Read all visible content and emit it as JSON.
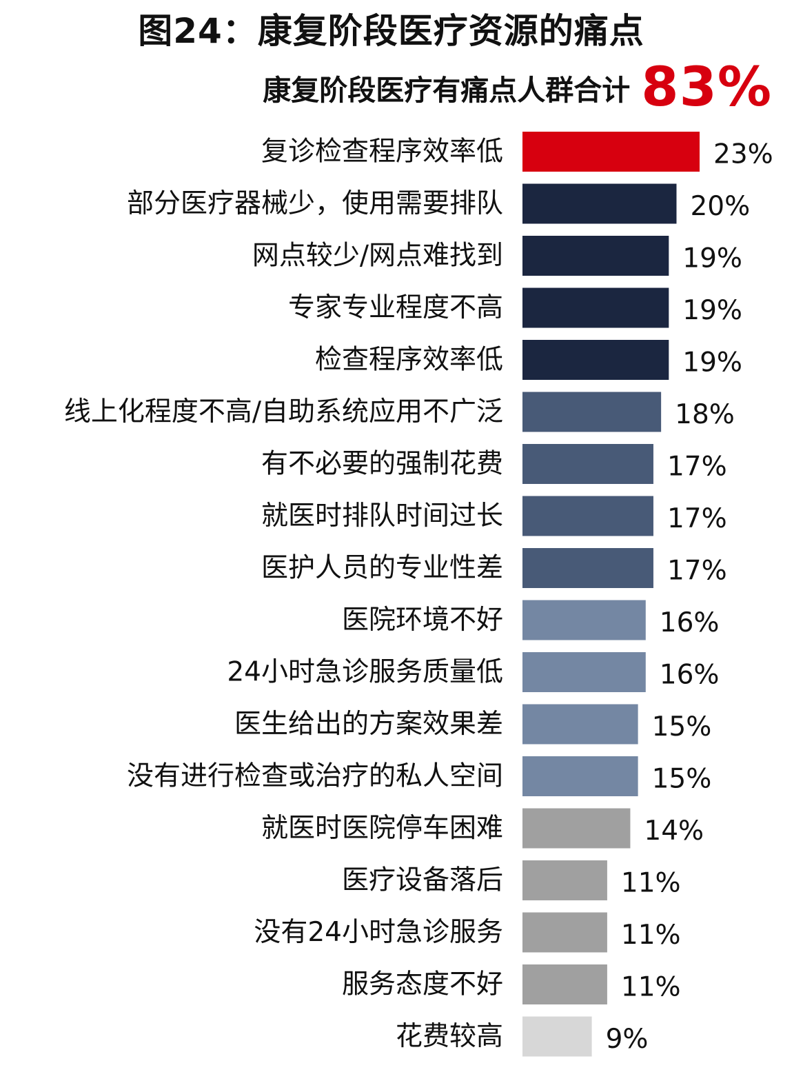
{
  "title": "图24：康复阶段医疗资源的痛点",
  "total": {
    "label": "康复阶段医疗有痛点人群合计",
    "value": "83%"
  },
  "colors": {
    "highlight": "#d7000f",
    "dark": "#1b2640",
    "mid": "#485a77",
    "light": "#7487a3",
    "grey": "#a0a0a0",
    "pale": "#d7d7d7"
  },
  "chart_data": {
    "type": "bar",
    "orientation": "horizontal",
    "categories": [
      "复诊检查程序效率低",
      "部分医疗器械少，使用需要排队",
      "网点较少/网点难找到",
      "专家专业程度不高",
      "检查程序效率低",
      "线上化程度不高/自助系统应用不广泛",
      "有不必要的强制花费",
      "就医时排队时间过长",
      "医护人员的专业性差",
      "医院环境不好",
      "24小时急诊服务质量低",
      "医生给出的方案效果差",
      "没有进行检查或治疗的私人空间",
      "就医时医院停车困难",
      "医疗设备落后",
      "没有24小时急诊服务",
      "服务态度不好",
      "花费较高"
    ],
    "values": [
      23,
      20,
      19,
      19,
      19,
      18,
      17,
      17,
      17,
      16,
      16,
      15,
      15,
      14,
      11,
      11,
      11,
      9
    ],
    "value_labels": [
      "23%",
      "20%",
      "19%",
      "19%",
      "19%",
      "18%",
      "17%",
      "17%",
      "17%",
      "16%",
      "16%",
      "15%",
      "15%",
      "14%",
      "11%",
      "11%",
      "11%",
      "9%"
    ],
    "bar_colors": [
      "highlight",
      "dark",
      "dark",
      "dark",
      "dark",
      "mid",
      "mid",
      "mid",
      "mid",
      "light",
      "light",
      "light",
      "light",
      "grey",
      "grey",
      "grey",
      "grey",
      "pale"
    ],
    "xlim": [
      0,
      23
    ],
    "grid": false,
    "legend": "none"
  }
}
